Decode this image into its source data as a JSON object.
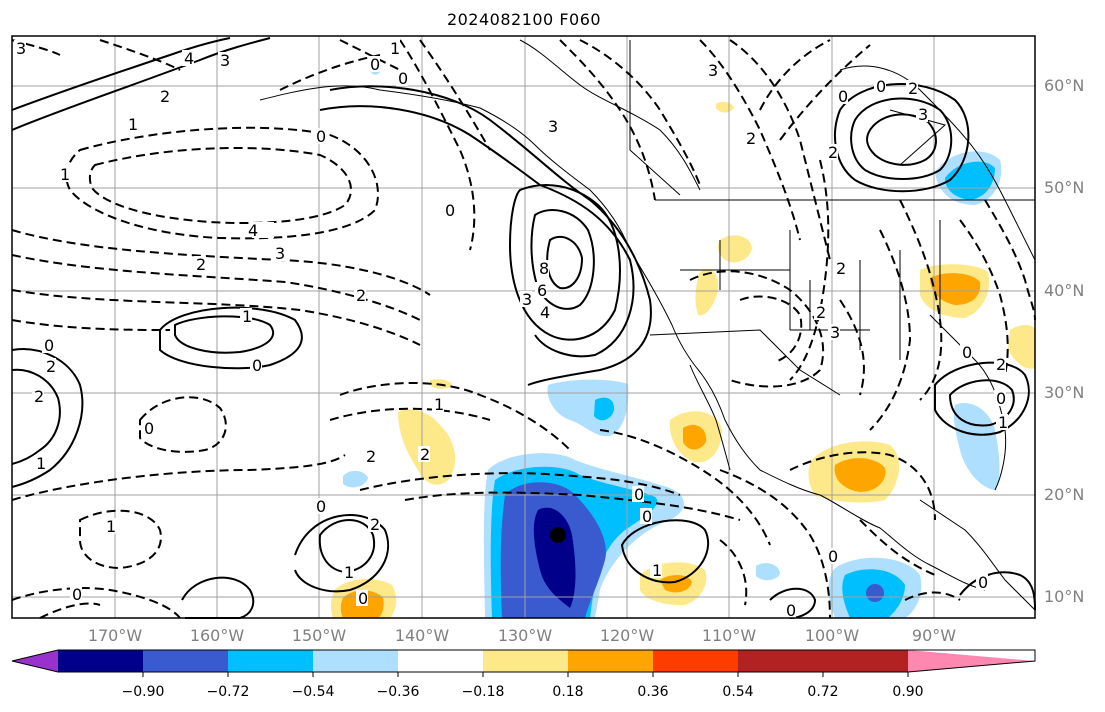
{
  "title": "2024082100 F060",
  "lat_labels": [
    "60°N",
    "50°N",
    "40°N",
    "30°N",
    "20°N",
    "10°N"
  ],
  "lon_labels": [
    "170°W",
    "160°W",
    "150°W",
    "140°W",
    "130°W",
    "120°W",
    "110°W",
    "100°W",
    "90°W"
  ],
  "colorbar": {
    "colors": [
      "#9932cc",
      "#00008b",
      "#3a5bcf",
      "#00bfff",
      "#afdfff",
      "#ffffff",
      "#fee98a",
      "#ffa500",
      "#ff3c00",
      "#b22222",
      "#ff88b0"
    ],
    "ticks": [
      "−0.90",
      "−0.72",
      "−0.54",
      "−0.36",
      "−0.18",
      "0.18",
      "0.36",
      "0.54",
      "0.72",
      "0.90"
    ]
  },
  "contour_labels": {
    "c0": "0",
    "c1": "1",
    "c2": "2",
    "c3": "3",
    "c4": "4",
    "c6": "6",
    "c8": "8",
    "cm1": "1",
    "cm2": "2",
    "cm3": "3",
    "cm4": "4"
  },
  "colors": {
    "light_blue": "#afdfff",
    "blue": "#00bfff",
    "med_blue": "#3a5bcf",
    "dark_blue": "#00008b",
    "yellow": "#fee98a",
    "orange": "#ffa500",
    "grid": "#a0a0a0",
    "label_gray": "#808080"
  }
}
